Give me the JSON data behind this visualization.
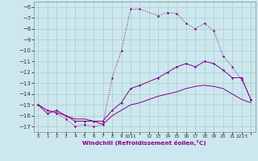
{
  "xlabel": "Windchill (Refroidissement éolien,°C)",
  "xlim": [
    -0.5,
    23.5
  ],
  "ylim": [
    -17.5,
    -5.5
  ],
  "yticks": [
    -17,
    -16,
    -15,
    -14,
    -13,
    -12,
    -11,
    -10,
    -9,
    -8,
    -7,
    -6
  ],
  "xtick_labels": [
    "0",
    "1",
    "2",
    "3",
    "4",
    "5",
    "6",
    "7",
    "8",
    "9",
    "1011",
    "",
    "13",
    "14",
    "15",
    "16",
    "17",
    "18",
    "19",
    "20",
    "21",
    "2223"
  ],
  "bg_color": "#cce8ee",
  "grid_color": "#aacccc",
  "line_color": "#880088",
  "line1_x": [
    0,
    1,
    2,
    3,
    4,
    5,
    6,
    7,
    8,
    9,
    10,
    11,
    13,
    14,
    15,
    16,
    17,
    18,
    19,
    20,
    21,
    22,
    23
  ],
  "line1_y": [
    -15.0,
    -15.5,
    -15.8,
    -16.3,
    -17.0,
    -16.8,
    -17.0,
    -16.8,
    -12.5,
    -10.0,
    -6.2,
    -6.2,
    -6.8,
    -6.5,
    -6.6,
    -7.5,
    -8.0,
    -7.5,
    -8.2,
    -10.5,
    -11.5,
    -12.7,
    -14.5
  ],
  "line2_x": [
    0,
    1,
    2,
    3,
    4,
    5,
    6,
    7,
    8,
    9,
    10,
    11,
    13,
    14,
    15,
    16,
    17,
    18,
    19,
    20,
    21,
    22,
    23
  ],
  "line2_y": [
    -15.0,
    -15.8,
    -15.5,
    -16.0,
    -16.5,
    -16.5,
    -16.5,
    -16.5,
    -15.5,
    -14.8,
    -13.5,
    -13.2,
    -12.5,
    -12.0,
    -11.5,
    -11.2,
    -11.5,
    -11.0,
    -11.2,
    -11.8,
    -12.5,
    -12.5,
    -14.5
  ],
  "line3_x": [
    0,
    1,
    2,
    3,
    4,
    5,
    6,
    7,
    8,
    9,
    10,
    11,
    13,
    14,
    15,
    16,
    17,
    18,
    19,
    20,
    21,
    22,
    23
  ],
  "line3_y": [
    -15.0,
    -15.5,
    -15.7,
    -16.0,
    -16.3,
    -16.3,
    -16.5,
    -16.8,
    -16.0,
    -15.5,
    -15.0,
    -14.8,
    -14.2,
    -14.0,
    -13.8,
    -13.5,
    -13.3,
    -13.2,
    -13.3,
    -13.5,
    -14.0,
    -14.5,
    -14.8
  ]
}
